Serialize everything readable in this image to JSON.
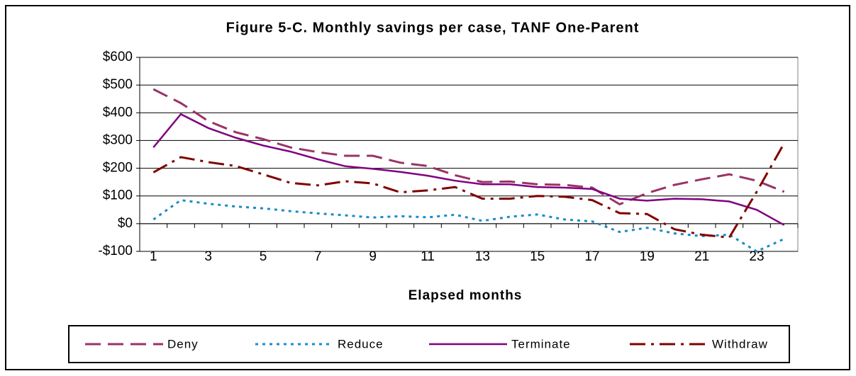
{
  "chart_data": {
    "type": "line",
    "title": "Figure 5-C. Monthly savings per case, TANF One-Parent",
    "x_label": "Elapsed months",
    "categories": [
      "1",
      null,
      "3",
      null,
      "5",
      null,
      "7",
      null,
      "9",
      null,
      "11",
      null,
      "13",
      null,
      "15",
      null,
      "17",
      null,
      "19",
      null,
      "21",
      null,
      "23",
      null
    ],
    "ylim": [
      -100,
      600
    ],
    "yticks": [
      {
        "value": -100,
        "label": "-$100"
      },
      {
        "value": 0,
        "label": "$0"
      },
      {
        "value": 100,
        "label": "$100"
      },
      {
        "value": 200,
        "label": "$200"
      },
      {
        "value": 300,
        "label": "$300"
      },
      {
        "value": 400,
        "label": "$400"
      },
      {
        "value": 500,
        "label": "$500"
      },
      {
        "value": 600,
        "label": "$600"
      }
    ],
    "grid": true,
    "legend": "bottom",
    "series": [
      {
        "name": "Deny",
        "color": "#993366",
        "values": [
          485,
          435,
          370,
          330,
          305,
          275,
          258,
          245,
          245,
          220,
          208,
          175,
          150,
          152,
          142,
          140,
          130,
          70,
          110,
          140,
          160,
          178,
          155,
          115
        ]
      },
      {
        "name": "Reduce",
        "color": "#1a8cc8",
        "values": [
          15,
          85,
          72,
          62,
          55,
          45,
          37,
          30,
          22,
          27,
          23,
          32,
          10,
          25,
          33,
          15,
          8,
          -30,
          -15,
          -35,
          -45,
          -40,
          -100,
          -55
        ]
      },
      {
        "name": "Terminate",
        "color": "#800080",
        "values": [
          275,
          395,
          345,
          310,
          282,
          260,
          232,
          207,
          198,
          187,
          173,
          155,
          142,
          142,
          132,
          130,
          125,
          90,
          83,
          90,
          88,
          80,
          50,
          -5
        ]
      },
      {
        "name": "Withdraw",
        "color": "#800000",
        "values": [
          185,
          240,
          222,
          208,
          178,
          147,
          138,
          153,
          145,
          113,
          120,
          132,
          90,
          90,
          100,
          97,
          85,
          38,
          35,
          -20,
          -40,
          -50,
          115,
          290
        ]
      }
    ]
  }
}
